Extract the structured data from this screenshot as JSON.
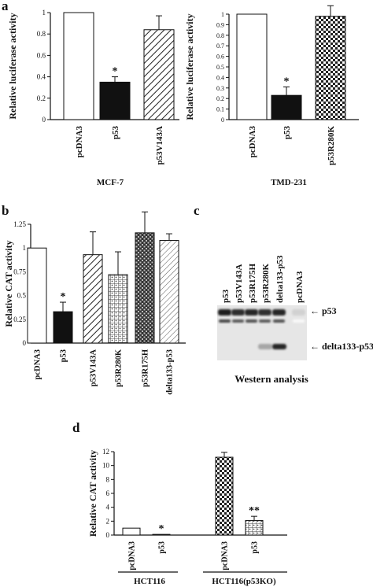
{
  "panel_letters": {
    "a": "a",
    "b": "b",
    "c": "c",
    "d": "d"
  },
  "chart_data": [
    {
      "id": "a_left",
      "type": "bar",
      "categories": [
        "pcDNA3",
        "p53",
        "p53V143A"
      ],
      "values": [
        1.0,
        0.35,
        0.84
      ],
      "errors": [
        0.0,
        0.05,
        0.13
      ],
      "patterns": [
        "white",
        "black",
        "diagonal"
      ],
      "sig": [
        "",
        "*",
        ""
      ],
      "title": "",
      "xlabel": "MCF-7",
      "ylabel": "Relative luciferase activity",
      "ylim": [
        0,
        1
      ],
      "yticks": [
        0,
        0.2,
        0.4,
        0.6,
        0.8,
        1
      ],
      "ytick_labels": [
        "0",
        "0.2",
        "0.4",
        "0.6",
        "0.8",
        "1"
      ]
    },
    {
      "id": "a_right",
      "type": "bar",
      "categories": [
        "pcDNA3",
        "p53",
        "p53R280K"
      ],
      "values": [
        1.0,
        0.23,
        0.98
      ],
      "errors": [
        0.0,
        0.08,
        0.1
      ],
      "patterns": [
        "white",
        "black",
        "check"
      ],
      "sig": [
        "",
        "*",
        ""
      ],
      "title": "",
      "xlabel": "TMD-231",
      "ylabel": "Relative luciferase activity",
      "ylim": [
        0,
        1
      ],
      "yticks": [
        0,
        0.1,
        0.2,
        0.3,
        0.4,
        0.5,
        0.6,
        0.7,
        0.8,
        0.9,
        1
      ],
      "ytick_labels": [
        "0",
        "0.1",
        "0.2",
        "0.3",
        "0.4",
        "0.5",
        "0.6",
        "0.7",
        "0.8",
        "0.9",
        "1"
      ]
    },
    {
      "id": "b",
      "type": "bar",
      "categories": [
        "pcDNA3",
        "p53",
        "p53V143A",
        "p53R280K",
        "p53R175H",
        "delta133-p53"
      ],
      "values": [
        1.0,
        0.33,
        0.93,
        0.72,
        1.16,
        1.08
      ],
      "errors": [
        0.0,
        0.1,
        0.24,
        0.24,
        0.22,
        0.07
      ],
      "patterns": [
        "white",
        "black",
        "diagonal",
        "dotgrid",
        "darkcheck",
        "lightdiag"
      ],
      "sig": [
        "",
        "*",
        "",
        "",
        "",
        ""
      ],
      "title": "",
      "xlabel": "",
      "ylabel": "Relative CAT activity",
      "ylim": [
        0,
        1.25
      ],
      "yticks": [
        0,
        0.25,
        0.5,
        0.75,
        1,
        1.25
      ],
      "ytick_labels": [
        "0",
        "0.25",
        "0.5",
        "0.75",
        "1",
        "1.25"
      ]
    },
    {
      "id": "d",
      "type": "bar",
      "categories": [
        "pcDNA3",
        "p53",
        "pcDNA3",
        "p53"
      ],
      "groups": [
        "HCT116",
        "HCT116(p53KO)"
      ],
      "values": [
        1.0,
        0.1,
        11.2,
        2.1
      ],
      "errors": [
        0.0,
        0.0,
        0.7,
        0.6
      ],
      "patterns": [
        "white",
        "black",
        "check",
        "dotgrid"
      ],
      "sig": [
        "",
        "*",
        "",
        "**"
      ],
      "title": "",
      "xlabel": "",
      "ylabel": "Relative CAT activity",
      "ylim": [
        0,
        12
      ],
      "yticks": [
        0,
        2,
        4,
        6,
        8,
        10,
        12
      ],
      "ytick_labels": [
        "0",
        "2",
        "4",
        "6",
        "8",
        "10",
        "12"
      ]
    }
  ],
  "western": {
    "lanes": [
      "p53",
      "p53V143A",
      "p53R175H",
      "p53R280K",
      "delta133-p53",
      "pcDNA3"
    ],
    "band_labels": [
      "← p53",
      "← delta133-p53"
    ],
    "caption": "Western analysis",
    "band_intensity": {
      "p53": [
        0.95,
        0.85,
        0.9,
        0.85,
        0.9,
        0.1
      ],
      "delta133-p53": [
        0.0,
        0.0,
        0.0,
        0.3,
        0.9,
        0.0
      ]
    }
  }
}
